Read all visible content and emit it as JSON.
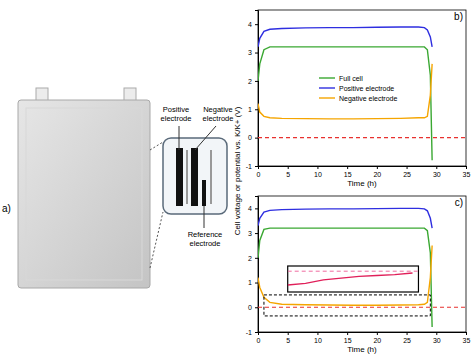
{
  "diagram": {
    "label": "a)",
    "positive_label": "Positive electrode",
    "negative_label": "Negative electrode",
    "reference_label": "Reference electrode"
  },
  "chart_data": [
    {
      "type": "line",
      "title": "b)",
      "xlabel": "Time (h)",
      "ylabel": "Cell voltage or potential vs. K/K+ (V)",
      "x": [
        0,
        0.3,
        1,
        2,
        4,
        8,
        12,
        16,
        20,
        24,
        27,
        28,
        28.5,
        29,
        29.3
      ],
      "series": [
        {
          "name": "Full cell",
          "color": "#3aa832",
          "values": [
            2.0,
            2.6,
            3.1,
            3.2,
            3.2,
            3.2,
            3.2,
            3.2,
            3.2,
            3.2,
            3.2,
            3.2,
            3.1,
            2.2,
            -0.8
          ]
        },
        {
          "name": "Positive electrode",
          "color": "#2e2ee0",
          "values": [
            3.2,
            3.5,
            3.75,
            3.82,
            3.85,
            3.87,
            3.88,
            3.88,
            3.89,
            3.9,
            3.9,
            3.88,
            3.8,
            3.55,
            3.2
          ]
        },
        {
          "name": "Negative electrode",
          "color": "#f5a500",
          "values": [
            1.2,
            0.9,
            0.75,
            0.7,
            0.68,
            0.67,
            0.66,
            0.66,
            0.67,
            0.68,
            0.7,
            0.7,
            0.75,
            1.5,
            2.6
          ]
        }
      ],
      "reference_line": {
        "value": 0,
        "color": "#e8312f",
        "line_style": "dashed"
      },
      "xlim": [
        0,
        35
      ],
      "xticks": [
        0,
        5,
        10,
        15,
        20,
        25,
        30,
        35
      ],
      "ylim": [
        -1,
        4.5
      ],
      "yticks": [
        -1,
        0,
        1,
        2,
        3,
        4
      ],
      "legend": "center"
    },
    {
      "type": "line",
      "title": "c)",
      "xlabel": "Time (h)",
      "x": [
        0,
        0.3,
        1,
        2,
        4,
        8,
        12,
        16,
        20,
        24,
        27,
        28,
        28.5,
        29,
        29.3
      ],
      "series": [
        {
          "name": "Full cell",
          "color": "#3aa832",
          "values": [
            2.0,
            2.7,
            3.15,
            3.2,
            3.2,
            3.2,
            3.2,
            3.2,
            3.2,
            3.2,
            3.2,
            3.2,
            3.1,
            2.2,
            -0.8
          ]
        },
        {
          "name": "Positive electrode",
          "color": "#2e2ee0",
          "values": [
            3.3,
            3.6,
            3.85,
            3.92,
            3.95,
            3.97,
            3.98,
            3.98,
            3.99,
            4.0,
            4.0,
            3.98,
            3.9,
            3.6,
            3.2
          ]
        },
        {
          "name": "Negative electrode",
          "color": "#f5a500",
          "values": [
            1.2,
            0.8,
            0.4,
            0.2,
            0.12,
            0.1,
            0.09,
            0.08,
            0.08,
            0.09,
            0.1,
            0.12,
            0.2,
            1.2,
            2.5
          ]
        }
      ],
      "reference_line": {
        "value": 0,
        "color": "#e8312f",
        "line_style": "dashed"
      },
      "xlim": [
        0,
        35
      ],
      "xticks": [
        0,
        5,
        10,
        15,
        20,
        25,
        30,
        35
      ],
      "ylim": [
        -1,
        4.5
      ],
      "yticks": [
        -1,
        0,
        1,
        2,
        3,
        4
      ],
      "inset": {
        "x": [
          5,
          8,
          11,
          14,
          17,
          20,
          23,
          26
        ],
        "values": [
          0.04,
          0.05,
          0.07,
          0.08,
          0.09,
          0.095,
          0.1,
          0.11
        ],
        "color": "#e0205a",
        "xlim": [
          5,
          27
        ],
        "ylim": [
          0,
          0.15
        ],
        "threshold": {
          "value": 0.12,
          "color": "#f06ca0",
          "line_style": "dashed"
        },
        "zoom_region": {
          "xlim": [
            1,
            29
          ],
          "ylim": [
            -0.35,
            0.5
          ]
        }
      }
    }
  ]
}
